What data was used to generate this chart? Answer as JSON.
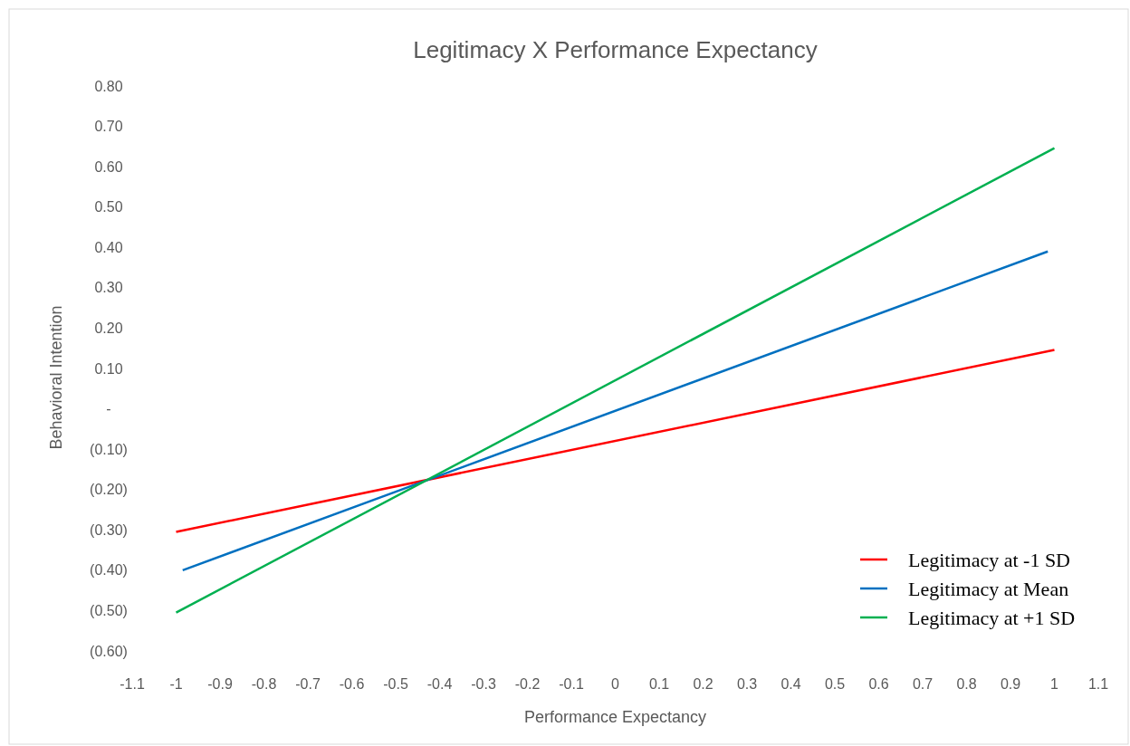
{
  "chart_data": {
    "type": "line",
    "title": "Legitimacy X Performance Expectancy",
    "xlabel": "Performance Expectancy",
    "ylabel": "Behavioral Intention",
    "series": [
      {
        "name": "Legitimacy at -1 SD",
        "color": "#ff0000",
        "x": [
          -1,
          1
        ],
        "values": [
          -0.305,
          0.146
        ]
      },
      {
        "name": "Legitimacy at Mean",
        "color": "#0070c0",
        "x": [
          -0.985,
          0.985
        ],
        "values": [
          -0.4,
          0.39
        ]
      },
      {
        "name": "Legitimacy at +1 SD",
        "color": "#00b050",
        "x": [
          -1,
          1
        ],
        "values": [
          -0.505,
          0.646
        ]
      }
    ],
    "xlim": [
      -1.1,
      1.1
    ],
    "xticks": [
      -1.1,
      -1,
      -0.9,
      -0.8,
      -0.7,
      -0.6,
      -0.5,
      -0.4,
      -0.3,
      -0.2,
      -0.1,
      0,
      0.1,
      0.2,
      0.3,
      0.4,
      0.5,
      0.6,
      0.7,
      0.8,
      0.9,
      1,
      1.1
    ],
    "ylim": [
      -0.6,
      0.8
    ],
    "yticks": [
      {
        "value": 0.8,
        "label": "0.80"
      },
      {
        "value": 0.7,
        "label": "0.70"
      },
      {
        "value": 0.6,
        "label": "0.60"
      },
      {
        "value": 0.5,
        "label": "0.50"
      },
      {
        "value": 0.4,
        "label": "0.40"
      },
      {
        "value": 0.3,
        "label": "0.30"
      },
      {
        "value": 0.2,
        "label": "0.20"
      },
      {
        "value": 0.1,
        "label": "0.10"
      },
      {
        "value": 0,
        "label": "-"
      },
      {
        "value": -0.1,
        "label": "(0.10)"
      },
      {
        "value": -0.2,
        "label": "(0.20)"
      },
      {
        "value": -0.3,
        "label": "(0.30)"
      },
      {
        "value": -0.4,
        "label": "(0.40)"
      },
      {
        "value": -0.5,
        "label": "(0.50)"
      },
      {
        "value": -0.6,
        "label": "(0.60)"
      }
    ],
    "grid": false,
    "legend": "bottom right",
    "marker": "none",
    "line_style": "solid"
  }
}
